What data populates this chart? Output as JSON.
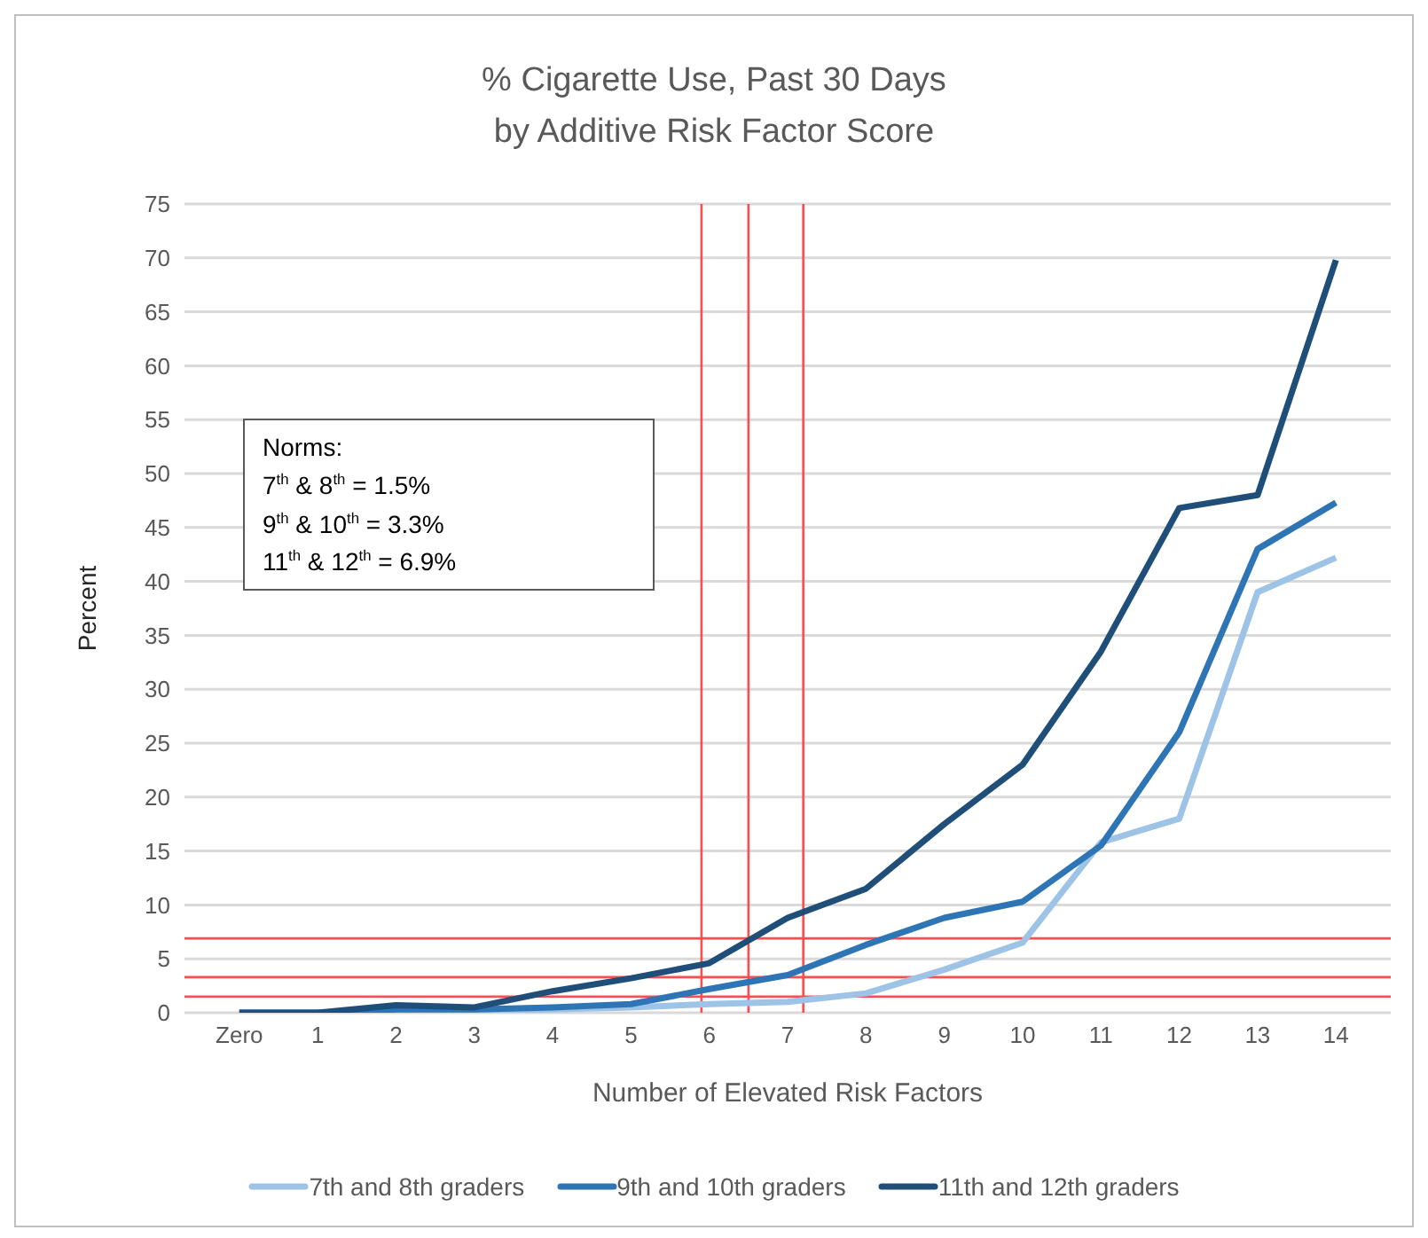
{
  "chart_data": {
    "type": "line",
    "title": "% Cigarette Use, Past 30 Days\nby Additive Risk Factor Score",
    "xlabel": "Number of Elevated Risk Factors",
    "ylabel": "Percent",
    "x": [
      0,
      1,
      2,
      3,
      4,
      5,
      6,
      7,
      8,
      9,
      10,
      11,
      12,
      13,
      14
    ],
    "xlim": [
      -0.7,
      14.7
    ],
    "xticks": [
      {
        "value": 0,
        "label": "Zero"
      },
      1,
      2,
      3,
      4,
      5,
      6,
      7,
      8,
      9,
      10,
      11,
      12,
      13,
      14
    ],
    "ylim": [
      0,
      75
    ],
    "yticks": [
      0,
      5,
      10,
      15,
      20,
      25,
      30,
      35,
      40,
      45,
      50,
      55,
      60,
      65,
      70,
      75
    ],
    "series": [
      {
        "name": "7th and 8th graders",
        "color": "#9dc3e6",
        "values": [
          0,
          0,
          0.2,
          0.2,
          0.3,
          0.5,
          0.8,
          1,
          1.8,
          4,
          6.5,
          15.8,
          18,
          39,
          42.2
        ]
      },
      {
        "name": "9th and 10th graders",
        "color": "#2e75b6",
        "values": [
          0,
          0,
          0.3,
          0.3,
          0.5,
          0.8,
          2.2,
          3.5,
          6.3,
          8.8,
          10.3,
          15.5,
          26,
          43,
          47.3
        ]
      },
      {
        "name": "11th and 12th graders",
        "color": "#1f4e79",
        "values": [
          0,
          0,
          0.7,
          0.5,
          2,
          3.2,
          4.6,
          8.8,
          11.5,
          17.5,
          23,
          33.5,
          46.8,
          48,
          69.8
        ]
      }
    ],
    "ref_lines": [
      {
        "axis": "y",
        "value": 6.9,
        "color": "#ff4d4d"
      },
      {
        "axis": "y",
        "value": 3.3,
        "color": "#ff4d4d"
      },
      {
        "axis": "y",
        "value": 1.5,
        "color": "#ff4d4d"
      },
      {
        "axis": "x",
        "value": 5.9,
        "color": "#ff4d4d"
      },
      {
        "axis": "x",
        "value": 6.5,
        "color": "#ff4d4d"
      },
      {
        "axis": "x",
        "value": 7.2,
        "color": "#ff4d4d"
      }
    ],
    "annotations": [
      "Norms:",
      "7$^{th}$ & 8$^{th}$ = 1.5%",
      "9$^{th}$ & 10$^{th}$ = 3.3%",
      "11$^{th}$ & 12$^{th}$ = 6.9%"
    ],
    "grid": "y",
    "legend": "bottom",
    "marker": "none",
    "line_style": "solid"
  }
}
